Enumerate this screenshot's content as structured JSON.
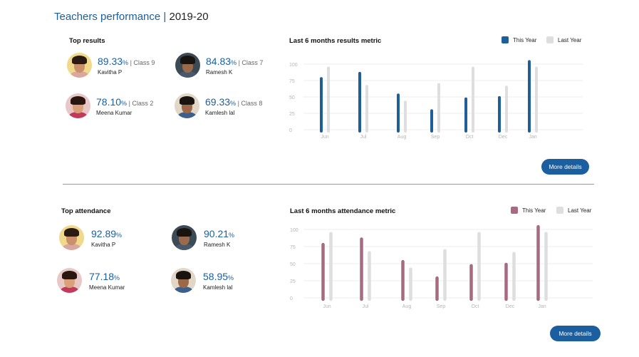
{
  "header": {
    "title_part1": "Teachers performance",
    "separator": " | ",
    "title_part2": "2019-20"
  },
  "colors": {
    "brand": "#1c5fa0",
    "results_this_year": "#1f5f99",
    "attendance_this_year": "#a86a80",
    "last_year": "#dedede",
    "grid": "#eeeeee",
    "tick": "#b5b5b5"
  },
  "results": {
    "heading": "Top results",
    "people": [
      {
        "pct": "89.33",
        "unit": "%",
        "cls": " | Class 9",
        "name": "Kavitha P"
      },
      {
        "pct": "84.83",
        "unit": "%",
        "cls": " | Class 7",
        "name": "Ramesh K"
      },
      {
        "pct": "78.10",
        "unit": "%",
        "cls": " | Class 2",
        "name": "Meena Kumar"
      },
      {
        "pct": "69.33",
        "unit": "%",
        "cls": " | Class 8",
        "name": "Kamlesh lal"
      }
    ],
    "more_button": "More details"
  },
  "attendance": {
    "heading": "Top attendance",
    "people": [
      {
        "pct": "92.89",
        "unit": "%",
        "name": "Kavitha P"
      },
      {
        "pct": "90.21",
        "unit": "%",
        "name": "Ramesh K"
      },
      {
        "pct": "77.18",
        "unit": "%",
        "name": "Meena Kumar"
      },
      {
        "pct": "58.95",
        "unit": "%",
        "name": "Kamlesh lal"
      }
    ],
    "more_button": "More details"
  },
  "chart_data": [
    {
      "type": "bar",
      "title": "Last 6 months results metric",
      "categories": [
        "Jun",
        "Jul",
        "Aug",
        "Sep",
        "Oct",
        "Dec",
        "Jan"
      ],
      "series": [
        {
          "name": "This Year",
          "values": [
            78,
            86,
            53,
            29,
            47,
            49,
            104
          ]
        },
        {
          "name": "Last Year",
          "values": [
            94,
            66,
            42,
            69,
            94,
            65,
            94
          ]
        }
      ],
      "y_ticks": [
        "100",
        "75",
        "50",
        "25",
        "0"
      ],
      "ylim": [
        0,
        100
      ],
      "grid": true,
      "legend": "top-right"
    },
    {
      "type": "bar",
      "title": "Last 6 months attendance metric",
      "categories": [
        "Jun",
        "Jul",
        "Aug",
        "Sep",
        "Oct",
        "Dec",
        "Jan"
      ],
      "series": [
        {
          "name": "This Year",
          "values": [
            78,
            86,
            53,
            29,
            47,
            49,
            104
          ]
        },
        {
          "name": "Last Year",
          "values": [
            94,
            66,
            42,
            69,
            94,
            65,
            94
          ]
        }
      ],
      "y_ticks": [
        "100",
        "75",
        "50",
        "25",
        "0"
      ],
      "ylim": [
        0,
        100
      ],
      "grid": true,
      "legend": "top-right"
    }
  ]
}
